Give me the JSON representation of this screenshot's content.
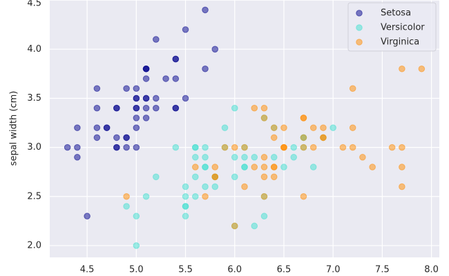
{
  "chart_data": {
    "type": "scatter",
    "ylabel": "sepal width (cm)",
    "xlim": [
      4.12,
      8.08
    ],
    "ylim": [
      1.88,
      4.52
    ],
    "xticks": [
      4.5,
      {
        "value": 5,
        "label": "5.0"
      },
      5.5,
      {
        "value": 6,
        "label": "6.0"
      },
      6.5,
      {
        "value": 7,
        "label": "7.0"
      },
      7.5,
      {
        "value": 8,
        "label": "8.0"
      }
    ],
    "yticks": [
      {
        "value": 2,
        "label": "2.0"
      },
      2.5,
      {
        "value": 3,
        "label": "3.0"
      },
      3.5,
      {
        "value": 4,
        "label": "4.0"
      },
      4.5
    ],
    "grid": true,
    "legend": "upper right",
    "alpha": 0.5,
    "series": [
      {
        "name": "Setosa",
        "color": "#00008b",
        "x": [
          5.1,
          4.9,
          4.7,
          4.6,
          5.0,
          5.4,
          4.6,
          5.0,
          4.4,
          4.9,
          5.4,
          4.8,
          4.8,
          4.3,
          5.8,
          5.7,
          5.4,
          5.1,
          5.7,
          5.1,
          5.4,
          5.1,
          4.6,
          5.1,
          4.8,
          5.0,
          5.0,
          5.2,
          5.2,
          4.7,
          4.8,
          5.4,
          5.2,
          5.5,
          4.9,
          5.0,
          5.5,
          4.9,
          4.4,
          5.1,
          5.0,
          4.5,
          4.4,
          5.0,
          5.1,
          4.8,
          5.1,
          4.6,
          5.3,
          5.0
        ],
        "y": [
          3.5,
          3.0,
          3.2,
          3.1,
          3.6,
          3.9,
          3.4,
          3.4,
          2.9,
          3.1,
          3.7,
          3.4,
          3.0,
          3.0,
          4.0,
          4.4,
          3.9,
          3.5,
          3.8,
          3.8,
          3.4,
          3.7,
          3.6,
          3.3,
          3.4,
          3.0,
          3.4,
          3.5,
          3.4,
          3.2,
          3.1,
          3.4,
          4.1,
          4.2,
          3.1,
          3.2,
          3.5,
          3.6,
          3.0,
          3.4,
          3.5,
          2.3,
          3.2,
          3.5,
          3.8,
          3.0,
          3.8,
          3.2,
          3.7,
          3.3
        ]
      },
      {
        "name": "Versicolor",
        "color": "#40e0d0",
        "x": [
          7.0,
          6.4,
          6.9,
          5.5,
          6.5,
          5.7,
          6.3,
          4.9,
          6.6,
          5.2,
          5.0,
          5.9,
          6.0,
          6.1,
          5.6,
          6.7,
          5.6,
          5.8,
          6.2,
          5.6,
          5.9,
          6.1,
          6.3,
          6.1,
          6.4,
          6.6,
          6.8,
          6.7,
          6.0,
          5.7,
          5.5,
          5.5,
          5.8,
          6.0,
          5.4,
          6.0,
          6.7,
          6.3,
          5.6,
          5.5,
          5.5,
          6.1,
          5.8,
          5.0,
          5.6,
          5.7,
          5.7,
          6.2,
          5.1,
          5.7
        ],
        "y": [
          3.2,
          3.2,
          3.1,
          2.3,
          2.8,
          2.8,
          3.3,
          2.4,
          2.9,
          2.7,
          2.0,
          3.0,
          2.2,
          2.9,
          2.9,
          3.1,
          3.0,
          2.7,
          2.2,
          2.5,
          3.2,
          2.8,
          2.5,
          2.8,
          2.9,
          3.0,
          2.8,
          3.0,
          2.9,
          2.6,
          2.4,
          2.4,
          2.7,
          2.7,
          3.0,
          3.4,
          3.1,
          2.3,
          3.0,
          2.5,
          2.6,
          3.0,
          2.6,
          2.3,
          2.7,
          3.0,
          2.9,
          2.9,
          2.5,
          2.8
        ]
      },
      {
        "name": "Virginica",
        "color": "#ff8c00",
        "x": [
          6.3,
          5.8,
          7.1,
          6.3,
          6.5,
          7.6,
          4.9,
          7.3,
          6.7,
          7.2,
          6.5,
          6.4,
          6.8,
          5.7,
          5.8,
          6.4,
          6.5,
          7.7,
          7.7,
          6.0,
          6.9,
          5.6,
          7.7,
          6.3,
          6.7,
          7.2,
          6.2,
          6.1,
          6.4,
          7.2,
          7.4,
          7.9,
          6.4,
          6.3,
          6.1,
          7.7,
          6.3,
          6.4,
          6.0,
          6.9,
          6.7,
          6.9,
          5.8,
          6.8,
          6.7,
          6.7,
          6.3,
          6.5,
          6.2,
          5.9
        ],
        "y": [
          3.3,
          2.7,
          3.0,
          2.9,
          3.0,
          3.0,
          2.5,
          2.9,
          2.5,
          3.6,
          3.2,
          2.7,
          3.0,
          2.5,
          2.8,
          3.2,
          3.0,
          3.8,
          2.6,
          2.2,
          3.2,
          2.8,
          2.8,
          2.7,
          3.3,
          3.2,
          2.8,
          3.0,
          2.8,
          3.0,
          2.8,
          3.8,
          2.8,
          2.8,
          2.6,
          3.0,
          3.4,
          3.1,
          3.0,
          3.1,
          3.1,
          3.1,
          2.7,
          3.2,
          3.3,
          3.0,
          2.5,
          3.0,
          3.4,
          3.0
        ]
      }
    ]
  }
}
